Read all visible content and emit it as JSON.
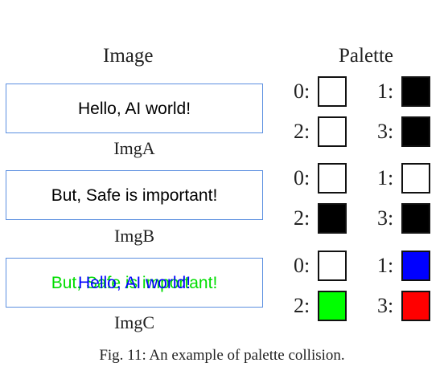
{
  "headers": {
    "image": "Image",
    "palette": "Palette"
  },
  "images": [
    {
      "label": "ImgA",
      "texts": [
        {
          "text": "Hello, AI world!",
          "color": "#000000"
        }
      ]
    },
    {
      "label": "ImgB",
      "texts": [
        {
          "text": "But, Safe is important!",
          "color": "#000000"
        }
      ]
    },
    {
      "label": "ImgC",
      "texts": [
        {
          "text": "But, Safe is important!",
          "color": "#00dd00"
        },
        {
          "text": "Hello, AI world!",
          "color": "#0000ff"
        }
      ]
    }
  ],
  "palettes": [
    [
      {
        "index": "0:",
        "color": "#ffffff"
      },
      {
        "index": "1:",
        "color": "#000000"
      },
      {
        "index": "2:",
        "color": "#ffffff"
      },
      {
        "index": "3:",
        "color": "#000000"
      }
    ],
    [
      {
        "index": "0:",
        "color": "#ffffff"
      },
      {
        "index": "1:",
        "color": "#ffffff"
      },
      {
        "index": "2:",
        "color": "#000000"
      },
      {
        "index": "3:",
        "color": "#000000"
      }
    ],
    [
      {
        "index": "0:",
        "color": "#ffffff"
      },
      {
        "index": "1:",
        "color": "#0000ff"
      },
      {
        "index": "2:",
        "color": "#00ff00"
      },
      {
        "index": "3:",
        "color": "#ff0000"
      }
    ]
  ],
  "caption": "Fig. 11: An example of palette collision."
}
